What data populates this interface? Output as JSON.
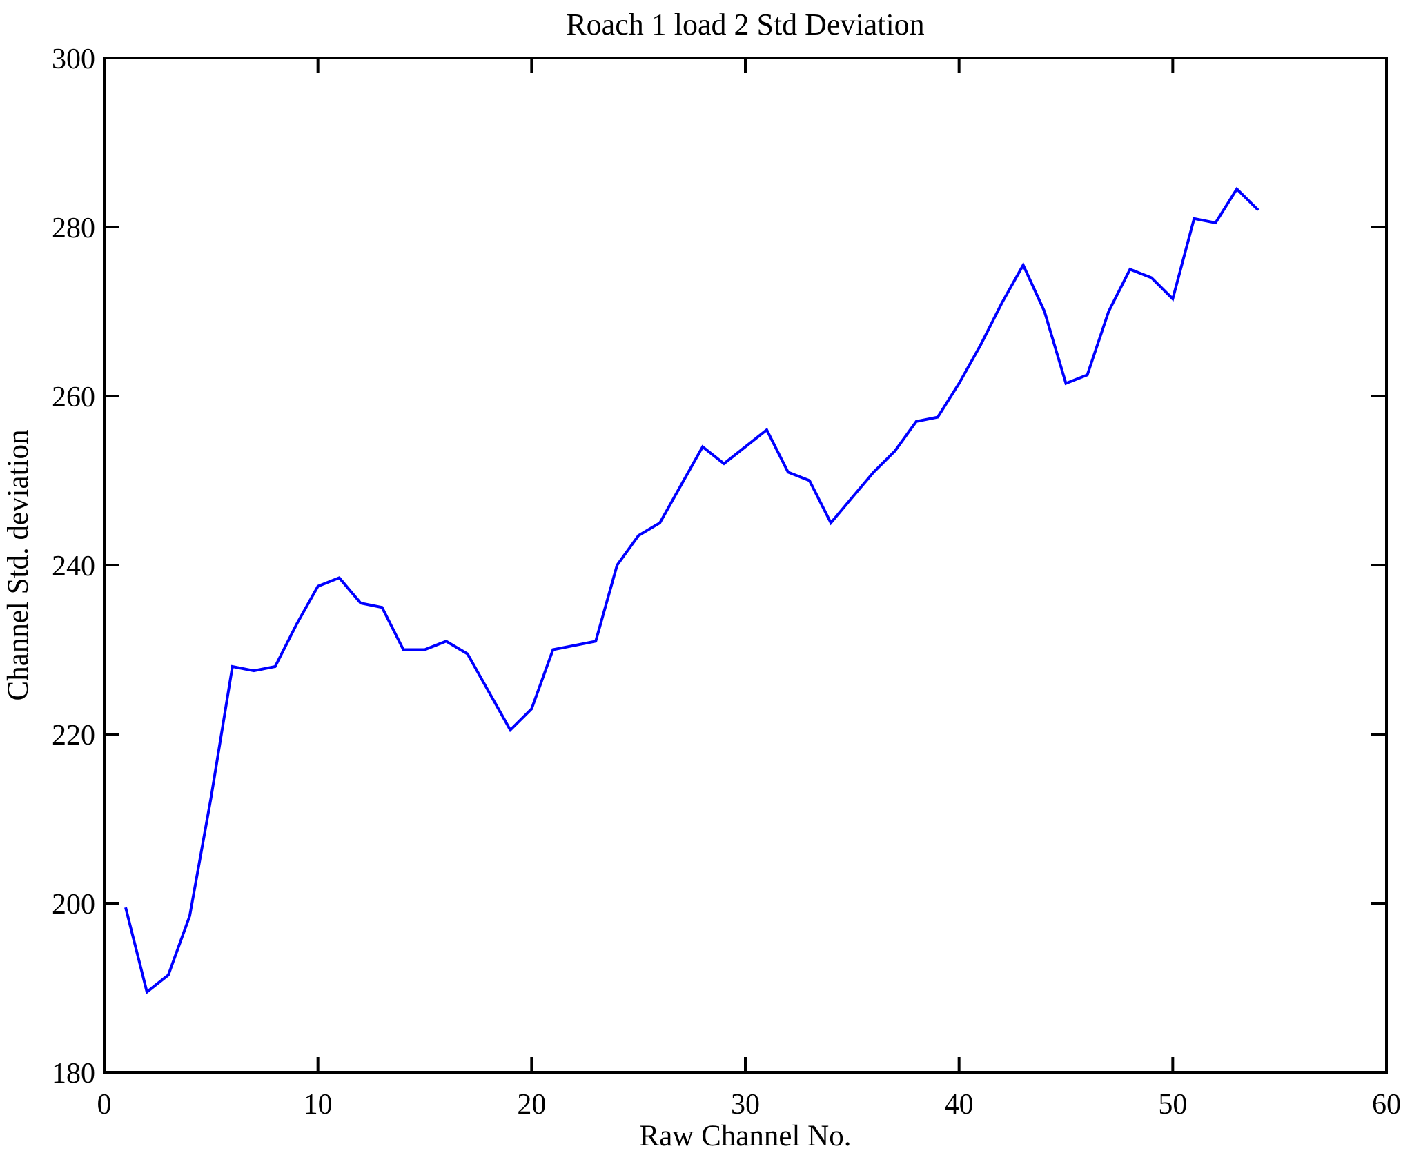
{
  "figure": {
    "background": "#ffffff",
    "axis_color": "#000000"
  },
  "chart_data": {
    "type": "line",
    "title": "Roach 1 load 2 Std Deviation",
    "xlabel": "Raw Channel No.",
    "ylabel": "Channel Std. deviation",
    "xlim": [
      0,
      60
    ],
    "ylim": [
      180,
      300
    ],
    "xticks": [
      0,
      10,
      20,
      30,
      40,
      50,
      60
    ],
    "yticks": [
      180,
      200,
      220,
      240,
      260,
      280,
      300
    ],
    "grid": false,
    "legend": null,
    "box": true,
    "tick_direction": "in",
    "series": [
      {
        "name": "Channel Std. deviation",
        "color": "#0000ff",
        "x": [
          1,
          2,
          3,
          4,
          5,
          6,
          7,
          8,
          9,
          10,
          11,
          12,
          13,
          14,
          15,
          16,
          17,
          18,
          19,
          20,
          21,
          22,
          23,
          24,
          25,
          26,
          27,
          28,
          29,
          30,
          31,
          32,
          33,
          34,
          35,
          36,
          37,
          38,
          39,
          40,
          41,
          42,
          43,
          44,
          45,
          46,
          47,
          48,
          49,
          50,
          51,
          52,
          53,
          54
        ],
        "y": [
          199.5,
          189.5,
          191.5,
          198.5,
          212.5,
          228,
          227.5,
          228,
          233,
          237.5,
          238.5,
          235.5,
          235,
          230,
          230,
          231,
          229.5,
          225,
          220.5,
          223,
          230,
          230.5,
          231,
          240,
          243.5,
          245,
          249.5,
          254,
          252,
          254,
          256,
          251,
          250,
          245,
          248,
          251,
          253.5,
          257,
          257.5,
          261.5,
          266,
          271,
          275.5,
          270,
          261.5,
          262.5,
          270,
          275,
          274,
          271.5,
          281,
          280.5,
          284.5,
          282
        ]
      }
    ]
  }
}
